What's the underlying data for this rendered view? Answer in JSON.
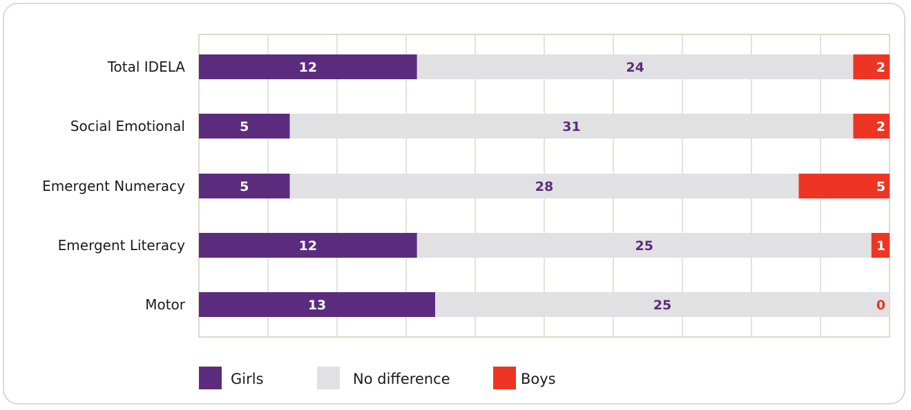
{
  "chart_data": {
    "type": "bar",
    "orientation": "horizontal",
    "stacked": true,
    "categories": [
      "Total IDELA",
      "Social Emotional",
      "Emergent Numeracy",
      "Emergent Literacy",
      "Motor"
    ],
    "series": [
      {
        "name": "Girls",
        "values": [
          12,
          5,
          5,
          12,
          13
        ],
        "color": "#5b2c7e",
        "label_color": "#ffffff"
      },
      {
        "name": "No difference",
        "values": [
          24,
          31,
          28,
          25,
          25
        ],
        "color": "#e1e1e3",
        "label_color": "#5b2c7e"
      },
      {
        "name": "Boys",
        "values": [
          2,
          2,
          5,
          1,
          0
        ],
        "color": "#ee3524",
        "label_color": "#ffffff",
        "zero_label_color": "#ee3524"
      }
    ],
    "xlim": [
      0,
      38
    ],
    "grid": true,
    "legend": "bottom-left",
    "title": "",
    "xlabel": "",
    "ylabel": ""
  }
}
